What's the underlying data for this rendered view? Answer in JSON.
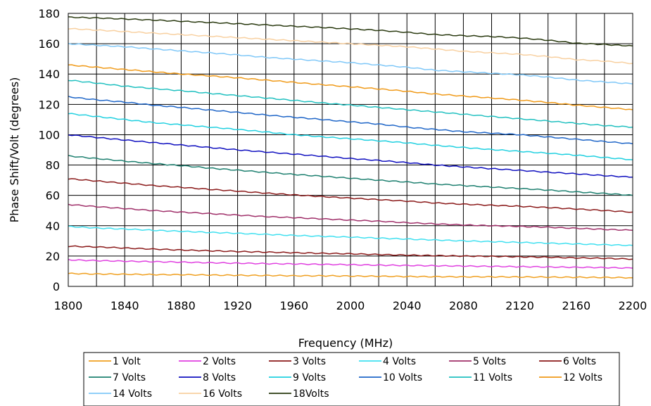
{
  "chart_data": {
    "type": "line",
    "title": "",
    "xlabel": "Frequency (MHz)",
    "ylabel": "Phase Shift/Volt (degrees)",
    "xlim": [
      1800,
      2200
    ],
    "ylim": [
      0,
      180
    ],
    "x_ticks": [
      1800,
      1840,
      1880,
      1920,
      1960,
      2000,
      2040,
      2080,
      2120,
      2160,
      2200
    ],
    "y_ticks": [
      0,
      20,
      40,
      60,
      80,
      100,
      120,
      140,
      160,
      180
    ],
    "grid": true,
    "legend_position": "bottom",
    "x": [
      1800,
      1820,
      1840,
      1860,
      1880,
      1900,
      1920,
      1940,
      1960,
      1980,
      2000,
      2020,
      2040,
      2060,
      2080,
      2100,
      2120,
      2140,
      2160,
      2180,
      2200
    ],
    "series": [
      {
        "name": "1 Volt",
        "color": "#f0a020",
        "values": [
          8.5,
          8.2,
          8,
          7.8,
          7.7,
          7.5,
          7.3,
          7.2,
          7,
          7,
          6.8,
          6.7,
          6.5,
          6.4,
          6.3,
          6.3,
          6.2,
          6.1,
          6,
          5.9,
          5.7
        ]
      },
      {
        "name": "2 Volts",
        "color": "#e040e0",
        "values": [
          17.5,
          17,
          16.6,
          16.3,
          16,
          15.6,
          15.3,
          15,
          14.8,
          14.5,
          14.3,
          14,
          13.8,
          13.6,
          13.4,
          13.2,
          13,
          12.8,
          12.6,
          12.4,
          12
        ]
      },
      {
        "name": "3 Volts",
        "color": "#8b1a1a",
        "values": [
          26.5,
          26,
          25.3,
          24.6,
          24,
          23.5,
          23,
          22.6,
          22.2,
          21.8,
          21.5,
          21,
          20.6,
          20.3,
          20,
          19.8,
          19.5,
          19.2,
          18.8,
          18.5,
          18
        ]
      },
      {
        "name": "4 Volts",
        "color": "#40e0f0",
        "values": [
          39.5,
          38.5,
          37.8,
          37,
          36.3,
          35.6,
          35,
          34.3,
          33.6,
          33,
          32.5,
          31.8,
          31.2,
          30.6,
          30,
          29.5,
          29,
          28.5,
          28,
          27.5,
          27
        ]
      },
      {
        "name": "5 Volts",
        "color": "#a0306a",
        "values": [
          54,
          52.6,
          51.3,
          50,
          49,
          48,
          47,
          46,
          45.3,
          44.5,
          43.7,
          43,
          42,
          41.2,
          40.5,
          40,
          39.5,
          39,
          38.3,
          37.6,
          37
        ]
      },
      {
        "name": "6 Volts",
        "color": "#8b1a1a",
        "values": [
          71,
          69.5,
          68,
          66.5,
          65.3,
          64,
          62.8,
          61.5,
          60.3,
          59.2,
          58.2,
          57.2,
          56.2,
          55,
          54.2,
          53.5,
          52.8,
          52,
          51,
          50,
          49
        ]
      },
      {
        "name": "7 Volts",
        "color": "#1e8070",
        "values": [
          86,
          84.3,
          82.6,
          81,
          79.6,
          78,
          76.6,
          75.2,
          73.8,
          72.6,
          71.3,
          70,
          68.8,
          67.5,
          66.5,
          65.5,
          64.5,
          63.5,
          62.3,
          61.3,
          60
        ]
      },
      {
        "name": "8 Volts",
        "color": "#1010c0",
        "values": [
          100,
          98.2,
          96.5,
          94.8,
          93.2,
          91.6,
          90,
          88.6,
          87.2,
          85.8,
          84.3,
          83,
          81.6,
          80,
          78.8,
          77.6,
          76.5,
          75.3,
          74.2,
          73,
          72
        ]
      },
      {
        "name": "9 Volts",
        "color": "#20d0e0",
        "values": [
          114,
          112,
          110,
          108,
          106.5,
          105,
          103.5,
          101.8,
          100,
          98.6,
          97.3,
          96,
          94.6,
          93,
          91.6,
          90.2,
          89,
          87.8,
          86.5,
          85,
          83.5
        ]
      },
      {
        "name": "10 Volts",
        "color": "#1f66c8",
        "values": [
          125,
          123,
          121.5,
          119.5,
          118,
          116.3,
          114.7,
          113,
          111.5,
          110,
          108.5,
          107,
          105,
          103.5,
          102,
          101,
          100,
          98.5,
          97,
          95.5,
          94
        ]
      },
      {
        "name": "11 Volts",
        "color": "#20c0c0",
        "values": [
          136,
          134,
          132,
          130.5,
          129,
          127.3,
          125.8,
          124.2,
          122.6,
          121,
          119.5,
          118,
          116.5,
          115,
          113.5,
          112,
          110.5,
          109,
          107.5,
          106,
          105
        ]
      },
      {
        "name": "12 Volts",
        "color": "#f09a18",
        "values": [
          146,
          144.5,
          143,
          141.5,
          140,
          138.8,
          137.5,
          136,
          134.5,
          133,
          131.6,
          130.2,
          128.6,
          126.8,
          125.5,
          124.2,
          122.8,
          121.3,
          119.5,
          118,
          116.5
        ]
      },
      {
        "name": "14 Volts",
        "color": "#80c8f8",
        "values": [
          160,
          159,
          158,
          156.6,
          155.3,
          154,
          152.6,
          151,
          149.8,
          148.6,
          147.5,
          146,
          144.5,
          142.5,
          141.5,
          140.5,
          139.5,
          138,
          136,
          134.8,
          133.5
        ]
      },
      {
        "name": "16 Volts",
        "color": "#f8d0a0",
        "values": [
          170,
          169,
          168,
          167,
          166,
          165,
          164,
          163,
          162,
          161,
          160,
          159,
          158,
          156.5,
          155,
          154,
          153,
          151.5,
          149.5,
          148.5,
          147
        ]
      },
      {
        "name": "18Volts",
        "color": "#2a3a10",
        "values": [
          177.5,
          177,
          176.3,
          175.6,
          174.8,
          174,
          173.2,
          172.4,
          171.5,
          170.7,
          169.8,
          168.8,
          167.5,
          166,
          165.3,
          164.7,
          163.8,
          162.3,
          160.3,
          159.5,
          158.5
        ]
      }
    ]
  }
}
